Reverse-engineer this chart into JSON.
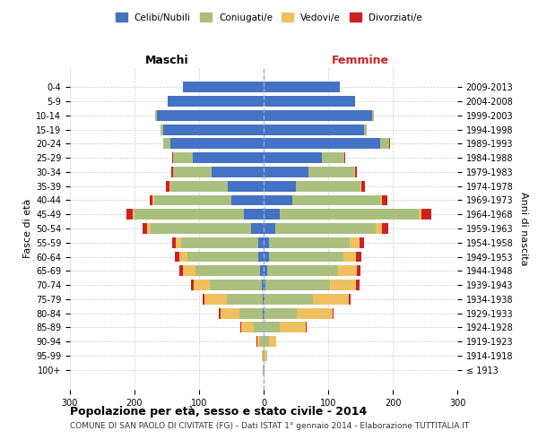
{
  "age_groups": [
    "100+",
    "95-99",
    "90-94",
    "85-89",
    "80-84",
    "75-79",
    "70-74",
    "65-69",
    "60-64",
    "55-59",
    "50-54",
    "45-49",
    "40-44",
    "35-39",
    "30-34",
    "25-29",
    "20-24",
    "15-19",
    "10-14",
    "5-9",
    "0-4"
  ],
  "birth_years": [
    "≤ 1913",
    "1914-1918",
    "1919-1923",
    "1924-1928",
    "1929-1933",
    "1934-1938",
    "1939-1943",
    "1944-1948",
    "1949-1953",
    "1954-1958",
    "1959-1963",
    "1964-1968",
    "1969-1973",
    "1974-1978",
    "1979-1983",
    "1984-1988",
    "1989-1993",
    "1994-1998",
    "1999-2003",
    "2004-2008",
    "2009-2013"
  ],
  "male": {
    "celibe": [
      0,
      0,
      0,
      0,
      2,
      2,
      3,
      5,
      8,
      8,
      20,
      30,
      50,
      55,
      80,
      110,
      145,
      155,
      165,
      148,
      125
    ],
    "coniugato": [
      1,
      2,
      5,
      15,
      35,
      55,
      80,
      100,
      110,
      120,
      155,
      170,
      120,
      90,
      60,
      30,
      10,
      5,
      3,
      0,
      0
    ],
    "vedovo": [
      0,
      1,
      5,
      20,
      30,
      35,
      25,
      20,
      12,
      8,
      5,
      3,
      2,
      1,
      0,
      0,
      0,
      0,
      0,
      0,
      0
    ],
    "divorziato": [
      0,
      0,
      1,
      1,
      3,
      3,
      5,
      5,
      8,
      5,
      8,
      10,
      5,
      5,
      3,
      2,
      1,
      0,
      0,
      0,
      0
    ]
  },
  "female": {
    "nubile": [
      0,
      0,
      0,
      0,
      2,
      2,
      3,
      5,
      8,
      8,
      18,
      25,
      45,
      50,
      70,
      90,
      180,
      155,
      168,
      142,
      118
    ],
    "coniugata": [
      1,
      2,
      8,
      25,
      50,
      75,
      100,
      110,
      115,
      125,
      155,
      215,
      135,
      100,
      70,
      35,
      15,
      5,
      3,
      0,
      0
    ],
    "vedova": [
      0,
      3,
      12,
      40,
      55,
      55,
      40,
      30,
      20,
      15,
      10,
      5,
      3,
      2,
      1,
      0,
      0,
      0,
      0,
      0,
      0
    ],
    "divorziata": [
      0,
      0,
      0,
      1,
      2,
      3,
      5,
      5,
      8,
      8,
      10,
      15,
      8,
      5,
      3,
      2,
      1,
      0,
      0,
      0,
      0
    ]
  },
  "colors": {
    "celibe": "#4472C4",
    "coniugato": "#AABF7E",
    "vedovo": "#F0C060",
    "divorziato": "#CC2222"
  },
  "title": "Popolazione per età, sesso e stato civile - 2014",
  "subtitle": "COMUNE DI SAN PAOLO DI CIVITATE (FG) - Dati ISTAT 1° gennaio 2014 - Elaborazione TUTTITALIA.IT",
  "ylabel_left": "Fasce di età",
  "ylabel_right": "Anni di nascita",
  "xlabel_left": "Maschi",
  "xlabel_right": "Femmine",
  "xlim": 300,
  "background_color": "#ffffff",
  "grid_color": "#cccccc"
}
